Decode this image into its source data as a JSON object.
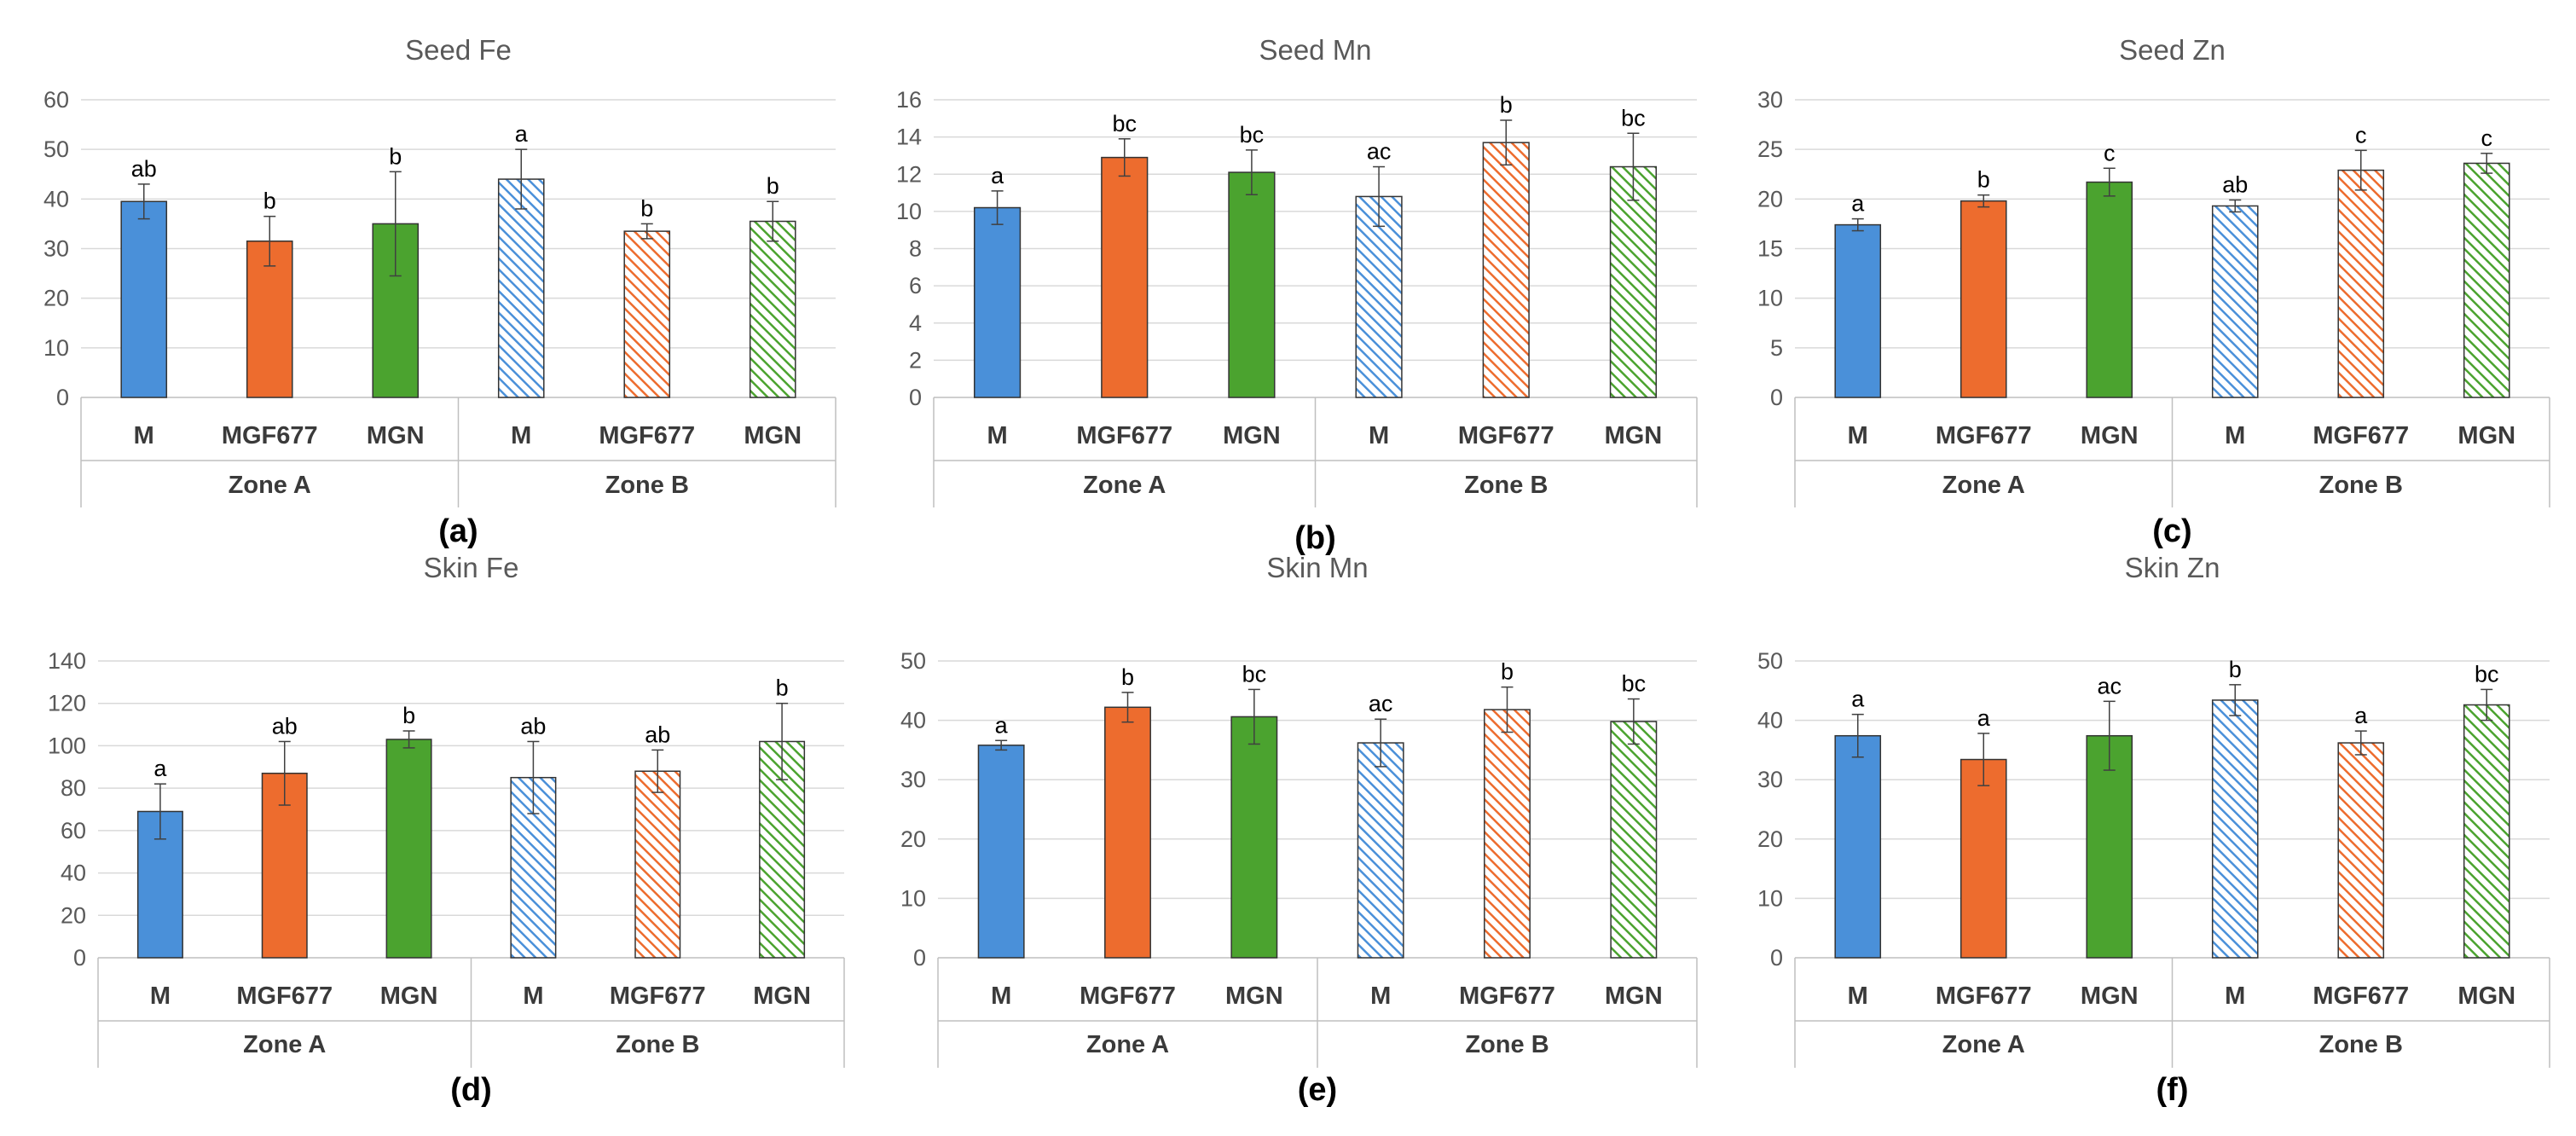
{
  "colors": {
    "M": "#4a90d9",
    "MGF677": "#ed6c2e",
    "MGN": "#4ba32f",
    "outline": "#333333",
    "text": "#595959"
  },
  "chart_data": [
    {
      "type": "bar",
      "title": "Seed Fe",
      "panel_label": "(a)",
      "groups": [
        "Zone A",
        "Zone B"
      ],
      "categories": [
        "M",
        "MGF677",
        "MGN",
        "M",
        "MGF677",
        "MGN"
      ],
      "values": [
        39.5,
        31.5,
        35,
        44,
        33.5,
        35.5
      ],
      "errors": [
        3.5,
        5,
        10.5,
        6,
        1.5,
        4
      ],
      "letters": [
        "ab",
        "b",
        "b",
        "a",
        "b",
        "b"
      ],
      "yticks": [
        "0",
        "10",
        "20",
        "30",
        "40",
        "50",
        "60"
      ],
      "ylim": [
        0,
        60
      ]
    },
    {
      "type": "bar",
      "title": "Seed Mn",
      "panel_label": "(b)",
      "groups": [
        "Zone A",
        "Zone B"
      ],
      "categories": [
        "M",
        "MGF677",
        "MGN",
        "M",
        "MGF677",
        "MGN"
      ],
      "values": [
        10.2,
        12.9,
        12.1,
        10.8,
        13.7,
        12.4
      ],
      "errors": [
        0.9,
        1.0,
        1.2,
        1.6,
        1.2,
        1.8
      ],
      "letters": [
        "a",
        "bc",
        "bc",
        "ac",
        "b",
        "bc"
      ],
      "yticks": [
        "0",
        "2",
        "4",
        "6",
        "8",
        "10",
        "12",
        "14",
        "16"
      ],
      "ylim": [
        0,
        16
      ]
    },
    {
      "type": "bar",
      "title": "Seed Zn",
      "panel_label": "(c)",
      "groups": [
        "Zone A",
        "Zone B"
      ],
      "categories": [
        "M",
        "MGF677",
        "MGN",
        "M",
        "MGF677",
        "MGN"
      ],
      "values": [
        17.4,
        19.8,
        21.7,
        19.3,
        22.9,
        23.6
      ],
      "errors": [
        0.6,
        0.6,
        1.4,
        0.6,
        2.0,
        1.0
      ],
      "letters": [
        "a",
        "b",
        "c",
        "ab",
        "c",
        "c"
      ],
      "yticks": [
        "0",
        "5",
        "10",
        "15",
        "20",
        "25",
        "30"
      ],
      "ylim": [
        0,
        30
      ]
    },
    {
      "type": "bar",
      "title": "Skin Fe",
      "panel_label": "(d)",
      "groups": [
        "Zone A",
        "Zone B"
      ],
      "categories": [
        "M",
        "MGF677",
        "MGN",
        "M",
        "MGF677",
        "MGN"
      ],
      "values": [
        69,
        87,
        103,
        85,
        88,
        102
      ],
      "errors": [
        13,
        15,
        4,
        17,
        10,
        18
      ],
      "letters": [
        "a",
        "ab",
        "b",
        "ab",
        "ab",
        "b"
      ],
      "yticks": [
        "0",
        "20",
        "40",
        "60",
        "80",
        "100",
        "120",
        "140"
      ],
      "ylim": [
        0,
        140
      ]
    },
    {
      "type": "bar",
      "title": "Skin Mn",
      "panel_label": "(e)",
      "groups": [
        "Zone A",
        "Zone B"
      ],
      "categories": [
        "M",
        "MGF677",
        "MGN",
        "M",
        "MGF677",
        "MGN"
      ],
      "values": [
        35.8,
        42.2,
        40.6,
        36.2,
        41.8,
        39.8
      ],
      "errors": [
        0.8,
        2.5,
        4.6,
        4.0,
        3.8,
        3.8
      ],
      "letters": [
        "a",
        "b",
        "bc",
        "ac",
        "b",
        "bc"
      ],
      "yticks": [
        "0",
        "10",
        "20",
        "30",
        "40",
        "50"
      ],
      "ylim": [
        0,
        50
      ]
    },
    {
      "type": "bar",
      "title": "Skin Zn",
      "panel_label": "(f)",
      "groups": [
        "Zone A",
        "Zone B"
      ],
      "categories": [
        "M",
        "MGF677",
        "MGN",
        "M",
        "MGF677",
        "MGN"
      ],
      "values": [
        37.4,
        33.4,
        37.4,
        43.4,
        36.2,
        42.6
      ],
      "errors": [
        3.6,
        4.4,
        5.8,
        2.6,
        2.0,
        2.6
      ],
      "letters": [
        "a",
        "a",
        "ac",
        "b",
        "a",
        "bc"
      ],
      "yticks": [
        "0",
        "10",
        "20",
        "30",
        "40",
        "50"
      ],
      "ylim": [
        0,
        50
      ]
    }
  ]
}
